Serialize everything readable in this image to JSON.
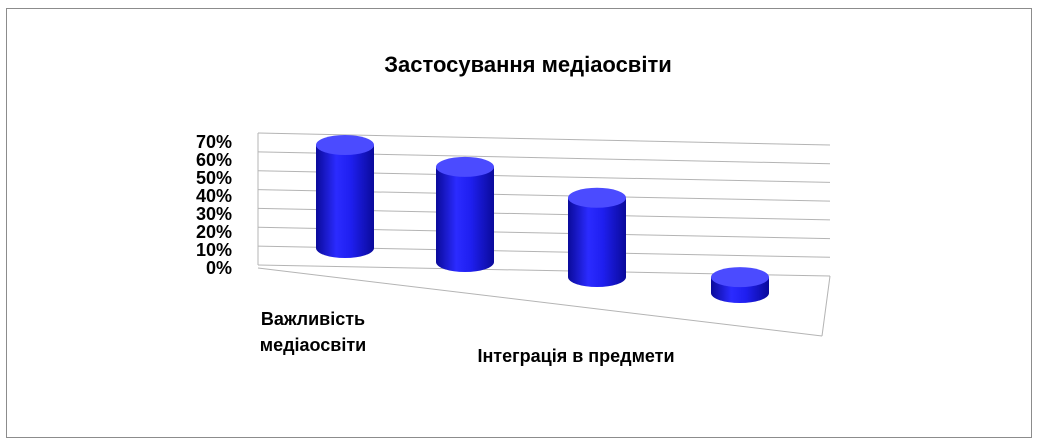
{
  "chart_data": {
    "type": "bar",
    "style": "3d-cylinder",
    "title": "Застосування медіаосвіти",
    "categories": [
      "Важливість медіаосвіти",
      "Інтеграція в предмети",
      "",
      ""
    ],
    "category_label_lines": [
      [
        "Важливість",
        "медіаосвіти"
      ],
      [
        "Інтеграція в предмети"
      ],
      [],
      []
    ],
    "series": [
      {
        "values": [
          0.65,
          0.6,
          0.5,
          0.1
        ]
      }
    ],
    "ylim": [
      0,
      0.7
    ],
    "yticks": [
      "0%",
      "10%",
      "20%",
      "30%",
      "40%",
      "50%",
      "60%",
      "70%"
    ],
    "grid": true,
    "legend": "none",
    "bar_color": "#1f1fe6",
    "bar_top_color": "#4b4bff",
    "grid_color": "#b4b4b4"
  }
}
